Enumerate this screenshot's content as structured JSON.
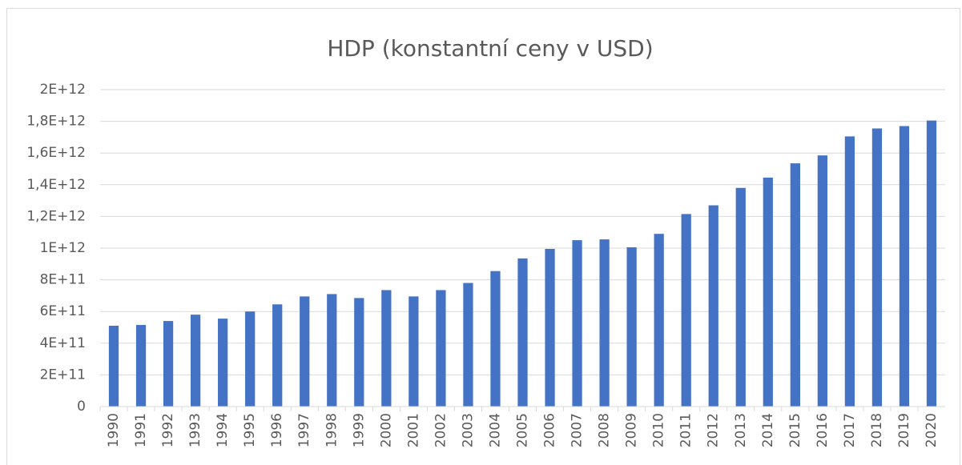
{
  "chart_data": {
    "type": "bar",
    "title": "HDP (konstantní ceny v USD)",
    "categories": [
      "1990",
      "1991",
      "1992",
      "1993",
      "1994",
      "1995",
      "1996",
      "1997",
      "1998",
      "1999",
      "2000",
      "2001",
      "2002",
      "2003",
      "2004",
      "2005",
      "2006",
      "2007",
      "2008",
      "2009",
      "2010",
      "2011",
      "2012",
      "2013",
      "2014",
      "2015",
      "2016",
      "2017",
      "2018",
      "2019",
      "2020"
    ],
    "values": [
      510000000000,
      515000000000,
      540000000000,
      580000000000,
      555000000000,
      600000000000,
      645000000000,
      695000000000,
      710000000000,
      685000000000,
      735000000000,
      695000000000,
      735000000000,
      780000000000,
      855000000000,
      935000000000,
      995000000000,
      1050000000000,
      1055000000000,
      1005000000000,
      1090000000000,
      1215000000000,
      1270000000000,
      1380000000000,
      1445000000000,
      1535000000000,
      1585000000000,
      1705000000000,
      1755000000000,
      1770000000000,
      1805000000000
    ],
    "color": "#4472c4",
    "ylim": [
      0,
      2000000000000
    ],
    "yticks": [
      0,
      {
        "value": 200000000000,
        "label": "2E+11"
      },
      {
        "value": 400000000000,
        "label": "4E+11"
      },
      {
        "value": 600000000000,
        "label": "6E+11"
      },
      {
        "value": 800000000000,
        "label": "8E+11"
      },
      {
        "value": 1000000000000,
        "label": "1E+12"
      },
      {
        "value": 1200000000000,
        "label": "1,2E+12"
      },
      {
        "value": 1400000000000,
        "label": "1,4E+12"
      },
      {
        "value": 1600000000000,
        "label": "1,6E+12"
      },
      {
        "value": 1800000000000,
        "label": "1,8E+12"
      },
      {
        "value": 2000000000000,
        "label": "2E+12"
      }
    ],
    "grid": true
  }
}
